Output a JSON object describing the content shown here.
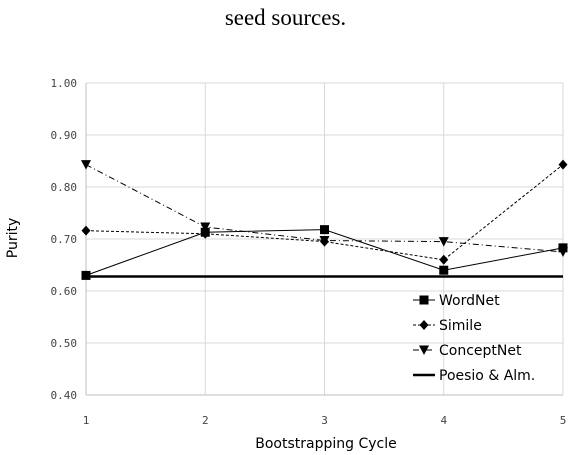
{
  "caption": "seed sources.",
  "chart_data": {
    "type": "line",
    "xlabel": "Bootstrapping Cycle",
    "ylabel": "Purity",
    "x": [
      1,
      2,
      3,
      4,
      5
    ],
    "x_tick_labels": [
      "1",
      "2",
      "3",
      "4",
      "5"
    ],
    "xlim": [
      1,
      5
    ],
    "ylim": [
      0.4,
      1.0
    ],
    "y_ticks": [
      0.4,
      0.5,
      0.6,
      0.7,
      0.8,
      0.9,
      1.0
    ],
    "y_tick_labels": [
      "0.40",
      "0.50",
      "0.60",
      "0.70",
      "0.80",
      "0.90",
      "1.00"
    ],
    "grid": "horizontal",
    "legend_position": "bottom-right",
    "series": [
      {
        "name": "WordNet",
        "values": [
          0.63,
          0.713,
          0.718,
          0.64,
          0.683
        ],
        "marker": "square",
        "line": "solid",
        "color": "#000000"
      },
      {
        "name": "Simile",
        "values": [
          0.716,
          0.71,
          0.695,
          0.66,
          0.843
        ],
        "marker": "diamond",
        "line": "dashed",
        "color": "#000000"
      },
      {
        "name": "ConceptNet",
        "values": [
          0.843,
          0.723,
          0.697,
          0.695,
          0.675
        ],
        "marker": "triangle-down",
        "line": "dashdot",
        "color": "#000000"
      },
      {
        "name": "Poesio & Alm.",
        "values": [
          0.628,
          0.628,
          0.628,
          0.628,
          0.628
        ],
        "marker": "none",
        "line": "thick",
        "color": "#000000"
      }
    ]
  }
}
